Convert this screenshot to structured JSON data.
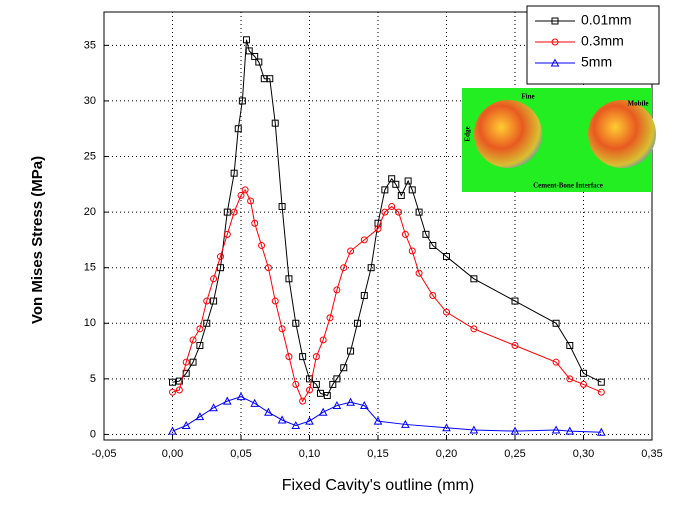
{
  "chart_data": {
    "type": "line",
    "x_label": "Fixed Cavity's outline (mm)",
    "y_label": "Von Mises Stress (MPa)",
    "xlim": [
      -0.05,
      0.35
    ],
    "ylim": [
      -0.5,
      38
    ],
    "xticks": [
      {
        "value": -0.05,
        "label": "-0,05"
      },
      {
        "value": 0,
        "label": "0,00"
      },
      {
        "value": 0.05,
        "label": "0,05"
      },
      {
        "value": 0.1,
        "label": "0,10"
      },
      {
        "value": 0.15,
        "label": "0,15"
      },
      {
        "value": 0.2,
        "label": "0,20"
      },
      {
        "value": 0.25,
        "label": "0,25"
      },
      {
        "value": 0.3,
        "label": "0,30"
      },
      {
        "value": 0.35,
        "label": "0,35"
      }
    ],
    "yticks": [
      0,
      5,
      10,
      15,
      20,
      25,
      30,
      35
    ],
    "grid": true,
    "legend": "top-right",
    "series": [
      {
        "name": "0.01mm",
        "color": "#000000",
        "marker": "square",
        "x": [
          0.0,
          0.005,
          0.01,
          0.015,
          0.02,
          0.025,
          0.03,
          0.035,
          0.04,
          0.045,
          0.048,
          0.051,
          0.054,
          0.056,
          0.06,
          0.063,
          0.067,
          0.071,
          0.075,
          0.08,
          0.085,
          0.09,
          0.095,
          0.1,
          0.105,
          0.108,
          0.113,
          0.117,
          0.12,
          0.125,
          0.13,
          0.135,
          0.14,
          0.145,
          0.15,
          0.155,
          0.16,
          0.163,
          0.167,
          0.172,
          0.175,
          0.18,
          0.185,
          0.19,
          0.2,
          0.22,
          0.25,
          0.28,
          0.29,
          0.3,
          0.313
        ],
        "values": [
          4.7,
          4.8,
          5.5,
          6.5,
          8,
          10,
          12,
          15,
          20,
          23.5,
          27.5,
          30,
          35.5,
          34.5,
          34,
          33.5,
          32,
          32,
          28,
          20.5,
          14,
          10,
          7,
          5,
          4.5,
          3.7,
          3.5,
          4.5,
          5,
          6,
          7.5,
          10,
          12.5,
          15,
          19,
          22,
          23,
          22.5,
          21.5,
          22.8,
          22,
          20,
          18,
          17,
          16,
          14,
          12,
          10,
          8,
          5.5,
          4.7
        ]
      },
      {
        "name": "0.3mm",
        "color": "#ff0000",
        "marker": "circle",
        "x": [
          0.0,
          0.005,
          0.01,
          0.015,
          0.02,
          0.025,
          0.03,
          0.035,
          0.04,
          0.045,
          0.05,
          0.053,
          0.057,
          0.06,
          0.065,
          0.07,
          0.075,
          0.08,
          0.085,
          0.09,
          0.095,
          0.1,
          0.105,
          0.11,
          0.115,
          0.12,
          0.125,
          0.13,
          0.14,
          0.15,
          0.155,
          0.16,
          0.165,
          0.17,
          0.175,
          0.18,
          0.19,
          0.2,
          0.22,
          0.25,
          0.28,
          0.29,
          0.3,
          0.313
        ],
        "values": [
          3.8,
          4,
          6.5,
          8.5,
          9.5,
          12,
          14,
          16,
          18,
          20,
          21.5,
          22,
          21,
          19,
          17,
          15,
          12,
          9.5,
          7,
          4.5,
          3,
          4,
          7,
          8.5,
          10.5,
          13,
          15,
          16.5,
          17.5,
          18.5,
          20,
          20.5,
          20,
          18,
          16.5,
          14.5,
          12.5,
          11,
          9.5,
          8,
          6.5,
          5,
          4.5,
          3.8
        ]
      },
      {
        "name": "5mm",
        "color": "#0000ff",
        "marker": "triangle",
        "x": [
          0.0,
          0.01,
          0.02,
          0.03,
          0.04,
          0.05,
          0.06,
          0.07,
          0.08,
          0.09,
          0.1,
          0.11,
          0.12,
          0.13,
          0.14,
          0.15,
          0.17,
          0.2,
          0.22,
          0.25,
          0.28,
          0.29,
          0.313
        ],
        "values": [
          0.3,
          0.8,
          1.6,
          2.4,
          3,
          3.4,
          2.8,
          2,
          1.3,
          0.8,
          1.2,
          2,
          2.6,
          2.9,
          2.6,
          1.2,
          0.9,
          0.6,
          0.4,
          0.3,
          0.4,
          0.3,
          0.2
        ]
      }
    ],
    "inset": {
      "left_label": "Fine",
      "right_label": "Mobile",
      "side_label": "Edge",
      "caption": "Cement-Bone Interface"
    }
  }
}
